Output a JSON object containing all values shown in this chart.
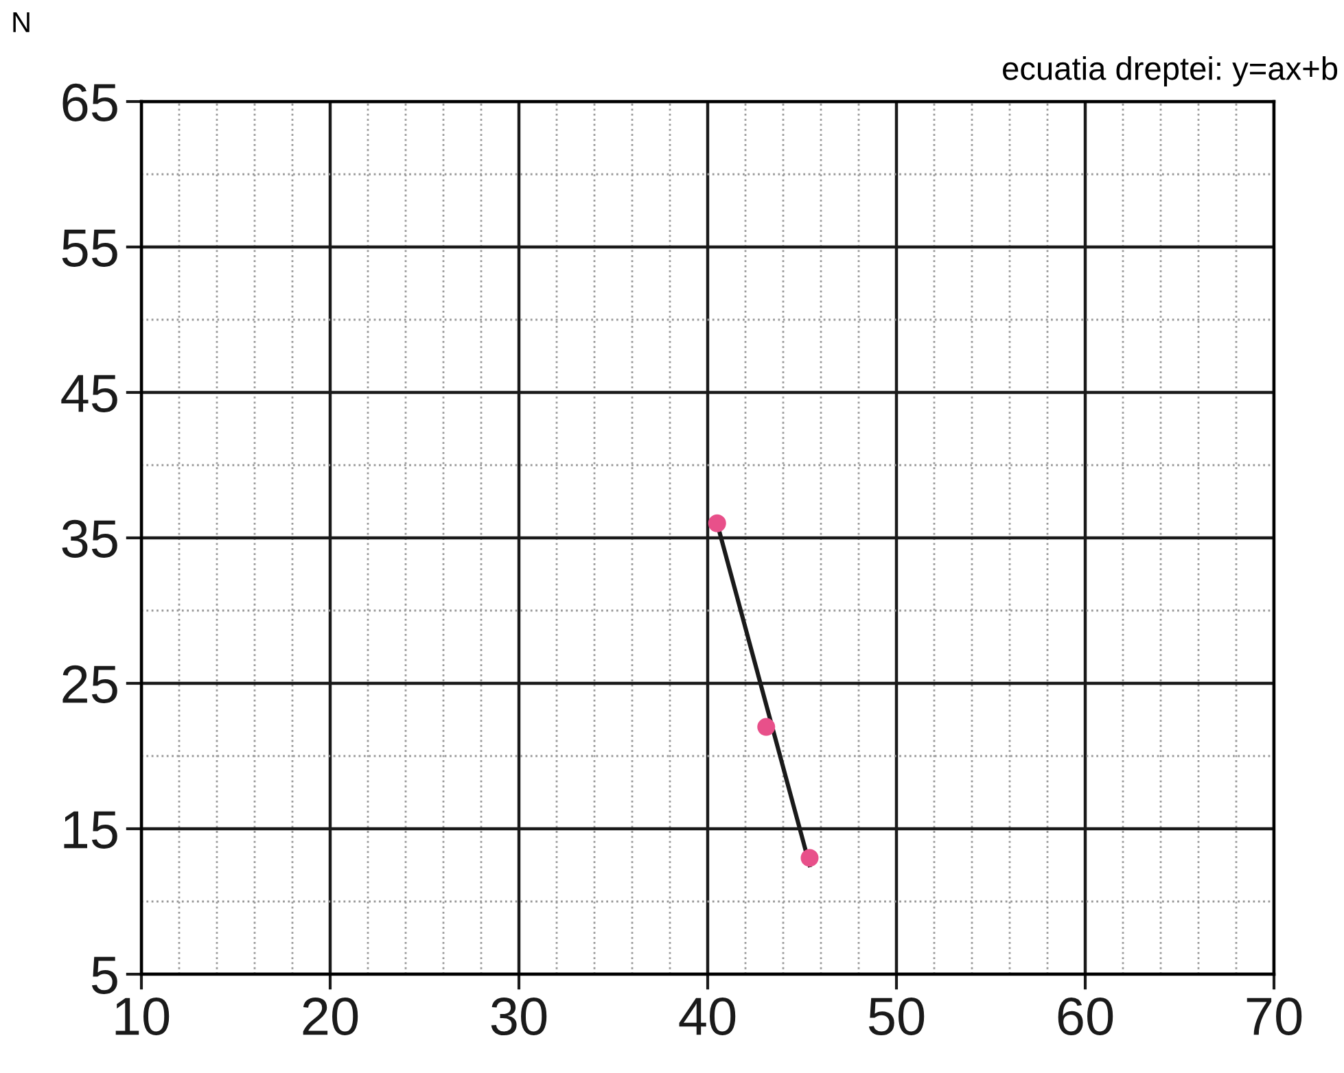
{
  "chart_data": {
    "type": "scatter",
    "ylabel": "N",
    "annotations": [
      "ecuatia dreptei: y=ax+b"
    ],
    "series": [
      {
        "color": "#e8508a",
        "x": [
          40.5,
          43.1,
          45.4
        ],
        "values": [
          36,
          22,
          13
        ],
        "marker": "circle"
      },
      {
        "type": "line",
        "color": "#1a1a1a",
        "x": [
          40.5,
          45.4
        ],
        "values": [
          36,
          12.5
        ],
        "marker": "none",
        "line_style": "solid"
      }
    ],
    "xlim": [
      10,
      70
    ],
    "ylim": [
      5,
      65
    ],
    "xticks": [
      10,
      {
        "value": 12,
        "label": null
      },
      {
        "value": 14,
        "label": null
      },
      {
        "value": 16,
        "label": null
      },
      {
        "value": 18,
        "label": null
      },
      20,
      {
        "value": 22,
        "label": null
      },
      {
        "value": 24,
        "label": null
      },
      {
        "value": 26,
        "label": null
      },
      {
        "value": 28,
        "label": null
      },
      30,
      {
        "value": 32,
        "label": null
      },
      {
        "value": 34,
        "label": null
      },
      {
        "value": 36,
        "label": null
      },
      {
        "value": 38,
        "label": null
      },
      40,
      {
        "value": 42,
        "label": null
      },
      {
        "value": 44,
        "label": null
      },
      {
        "value": 46,
        "label": null
      },
      {
        "value": 48,
        "label": null
      },
      50,
      {
        "value": 52,
        "label": null
      },
      {
        "value": 54,
        "label": null
      },
      {
        "value": 56,
        "label": null
      },
      {
        "value": 58,
        "label": null
      },
      60,
      {
        "value": 62,
        "label": null
      },
      {
        "value": 64,
        "label": null
      },
      {
        "value": 66,
        "label": null
      },
      {
        "value": 68,
        "label": null
      },
      70
    ],
    "yticks": [
      5,
      {
        "value": 10,
        "label": null
      },
      15,
      {
        "value": 20,
        "label": null
      },
      25,
      {
        "value": 30,
        "label": null
      },
      35,
      {
        "value": 40,
        "label": null
      },
      45,
      {
        "value": 50,
        "label": null
      },
      55,
      {
        "value": 60,
        "label": null
      },
      65
    ],
    "grid": true
  }
}
